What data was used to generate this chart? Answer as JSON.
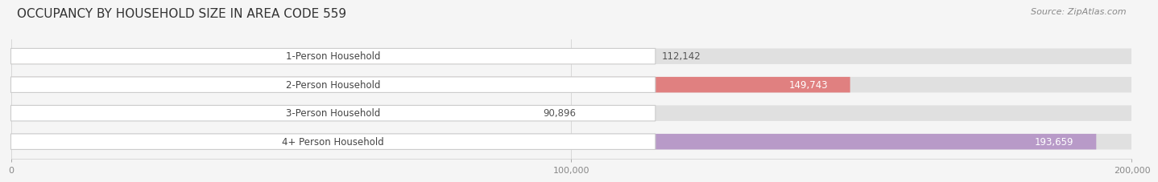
{
  "title": "OCCUPANCY BY HOUSEHOLD SIZE IN AREA CODE 559",
  "source": "Source: ZipAtlas.com",
  "categories": [
    "1-Person Household",
    "2-Person Household",
    "3-Person Household",
    "4+ Person Household"
  ],
  "values": [
    112142,
    149743,
    90896,
    193659
  ],
  "bar_colors": [
    "#f5c89a",
    "#e08080",
    "#aec6e8",
    "#b89ac8"
  ],
  "label_colors": [
    "#555555",
    "#ffffff",
    "#555555",
    "#ffffff"
  ],
  "xlim": [
    0,
    200000
  ],
  "xtick_labels": [
    "0",
    "100,000",
    "200,000"
  ],
  "bar_height": 0.55,
  "background_color": "#f5f5f5",
  "bar_bg_color": "#e0e0e0",
  "title_fontsize": 11,
  "label_fontsize": 8.5,
  "value_fontsize": 8.5,
  "tick_fontsize": 8,
  "source_fontsize": 8
}
